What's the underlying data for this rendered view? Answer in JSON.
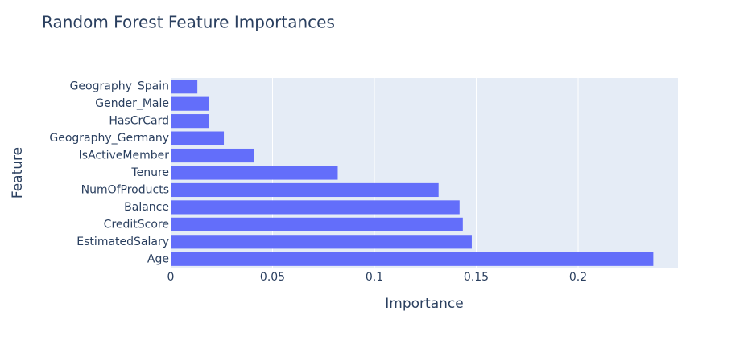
{
  "chart_data": {
    "type": "barh",
    "title": "Random Forest Feature Importances",
    "x_label": "Importance",
    "y_label": "Feature",
    "categories": [
      "Age",
      "EstimatedSalary",
      "CreditScore",
      "Balance",
      "NumOfProducts",
      "Tenure",
      "IsActiveMember",
      "Geography_Germany",
      "HasCrCard",
      "Gender_Male",
      "Geography_Spain"
    ],
    "values": [
      0.2369,
      0.1478,
      0.1434,
      0.1418,
      0.1315,
      0.082,
      0.0408,
      0.0261,
      0.0186,
      0.0186,
      0.0131
    ],
    "color": "#636efa",
    "xlim": [
      0,
      0.249
    ],
    "xticks": [
      0,
      0.05,
      0.1,
      0.15,
      0.2
    ],
    "grid": true
  }
}
